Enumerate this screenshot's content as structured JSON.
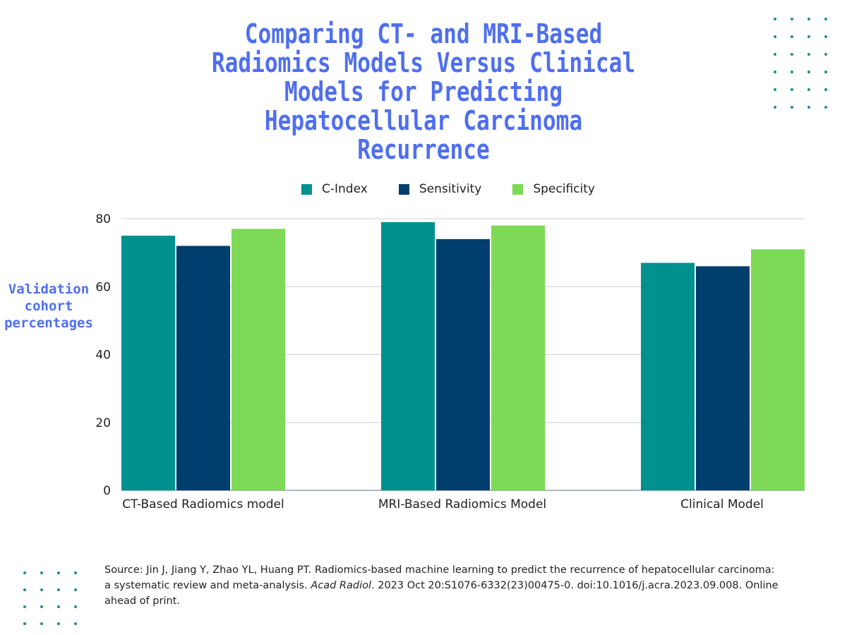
{
  "chart_data": {
    "type": "bar",
    "title": "Comparing CT- and MRI-Based Radiomics Models Versus Clinical Models for Predicting Hepatocellular Carcinoma Recurrence",
    "xlabel": "",
    "ylabel": "Validation cohort percentages",
    "ylim": [
      0,
      80
    ],
    "yticks": [
      0,
      20,
      40,
      60,
      80
    ],
    "grid": true,
    "legend_placement": "top",
    "categories": [
      "CT-Based Radiomics model",
      "MRI-Based Radiomics Model",
      "Clinical Model"
    ],
    "series": [
      {
        "name": "C-Index",
        "color": "#00918f",
        "values": [
          75,
          79,
          67
        ]
      },
      {
        "name": "Sensitivity",
        "color": "#003e6e",
        "values": [
          72,
          74,
          66
        ]
      },
      {
        "name": "Specificity",
        "color": "#7ed957",
        "values": [
          77,
          78,
          71
        ]
      }
    ]
  },
  "source": {
    "prefix": "Source: Jin J, Jiang Y, Zhao YL, Huang PT. Radiomics-based machine learning to predict the recurrence of hepatocellular carcinoma: a systematic review and meta-analysis. ",
    "journal": "Acad Radiol",
    "suffix": ". 2023 Oct 20:S1076-6332(23)00475-0. doi:10.1016/j.acra.2023.09.008. Online ahead of print."
  },
  "colors": {
    "title": "#4f6ff0",
    "dots": "#1a8f8f"
  }
}
